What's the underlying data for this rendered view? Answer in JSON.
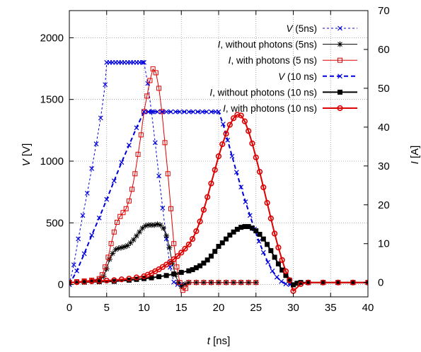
{
  "chart_data": {
    "type": "line",
    "xlabel": {
      "italic": "t",
      "unit": " [ns]"
    },
    "ylabel_left": {
      "italic": "V",
      "unit": " [V]"
    },
    "ylabel_right": {
      "italic": "I",
      "unit": " [A]"
    },
    "xlim": [
      0,
      40
    ],
    "ylim_left": [
      -100,
      2220
    ],
    "ylim_right": [
      -3.7,
      70
    ],
    "x_ticks": [
      0,
      5,
      10,
      15,
      20,
      25,
      30,
      35,
      40
    ],
    "y_ticks_left": [
      0,
      500,
      1000,
      1500,
      2000
    ],
    "y_ticks_right": [
      0,
      10,
      20,
      30,
      40,
      50,
      60,
      70
    ],
    "grid": true,
    "legend_placement": "top-right",
    "legend": [
      {
        "italic": "V",
        "text": " (5ns)"
      },
      {
        "italic": "I",
        "text": ", without photons (5ns)"
      },
      {
        "italic": "I",
        "text": ", with photons (5 ns)"
      },
      {
        "italic": "V",
        "text": " (10 ns)"
      },
      {
        "italic": "I",
        "text": ", without photons (10 ns)"
      },
      {
        "italic": "I",
        "text": ", with photons (10 ns)"
      }
    ],
    "series": [
      {
        "axis": "left",
        "color": "#0000dd",
        "width": 1,
        "dash": "3,3",
        "marker": "x",
        "x": [
          0,
          0.6,
          1.2,
          1.8,
          2.4,
          3.0,
          3.6,
          4.2,
          4.8,
          5.0,
          5.4,
          5.8,
          6.2,
          6.6,
          7.0,
          7.4,
          7.8,
          8.2,
          8.6,
          9.0,
          9.4,
          9.8,
          10.0,
          10.5,
          11.0,
          11.5,
          12.0,
          12.5,
          13.0,
          13.5,
          14.0,
          14.5,
          15.0
        ],
        "y": [
          0,
          160,
          370,
          560,
          740,
          940,
          1140,
          1350,
          1620,
          1800,
          1800,
          1800,
          1800,
          1800,
          1800,
          1800,
          1800,
          1800,
          1800,
          1800,
          1800,
          1800,
          1800,
          1630,
          1400,
          1150,
          880,
          620,
          370,
          140,
          20,
          0,
          0
        ]
      },
      {
        "axis": "right",
        "color": "#000000",
        "width": 1,
        "dash": "",
        "marker": "star",
        "x": [
          0,
          1,
          2,
          3,
          4,
          4.6,
          5.0,
          5.4,
          5.8,
          6.2,
          6.6,
          7.0,
          7.4,
          7.8,
          8.2,
          8.6,
          9.0,
          9.4,
          9.8,
          10.2,
          10.6,
          11.0,
          11.4,
          11.8,
          12.2,
          12.6,
          13.0,
          13.4,
          13.8,
          14.2,
          14.6,
          15.0,
          15.5,
          16,
          17,
          18,
          19,
          20,
          21,
          22,
          23,
          24,
          25
        ],
        "y": [
          0,
          0.1,
          0.2,
          0.4,
          0.8,
          1.5,
          3.5,
          6,
          7.5,
          8.5,
          8.8,
          9.0,
          9.2,
          9.5,
          10.2,
          11,
          12,
          13,
          14,
          14.6,
          14.8,
          14.8,
          14.8,
          15.0,
          14.8,
          14,
          12,
          9,
          5,
          2,
          0,
          -1.0,
          -0.4,
          0,
          0,
          0,
          0,
          0,
          0,
          0,
          0,
          0,
          0
        ]
      },
      {
        "axis": "right",
        "color": "#dd0000",
        "width": 1,
        "dash": "",
        "marker": "square",
        "x": [
          0,
          1,
          2,
          3,
          4,
          4.4,
          4.8,
          5.2,
          5.6,
          6.0,
          6.4,
          6.8,
          7.2,
          7.6,
          8.0,
          8.4,
          8.8,
          9.2,
          9.6,
          10.0,
          10.4,
          10.8,
          11.2,
          11.6,
          12.0,
          12.4,
          12.8,
          13.2,
          13.6,
          14.0,
          14.4,
          14.8,
          15.2,
          15.6,
          16,
          17,
          18,
          19,
          20,
          21,
          22,
          23,
          24,
          25
        ],
        "y": [
          0,
          0.2,
          0.4,
          0.6,
          1.0,
          2.0,
          4,
          6.5,
          10,
          13,
          15.5,
          17,
          18,
          19,
          21,
          24,
          28,
          33,
          38,
          44,
          48,
          52,
          55,
          54,
          50,
          44,
          36,
          28,
          19,
          10,
          4,
          0,
          -2.0,
          -1.5,
          0,
          0,
          0,
          0,
          0,
          0,
          0,
          0,
          0,
          0
        ]
      },
      {
        "axis": "left",
        "color": "#0000dd",
        "width": 2,
        "dash": "6,4",
        "marker": "x",
        "x": [
          0,
          1,
          2,
          3,
          4,
          5,
          6,
          7,
          8,
          9,
          10,
          10.6,
          11.2,
          11.8,
          12.4,
          13,
          13.6,
          14.2,
          14.8,
          15.4,
          16,
          16.6,
          17.2,
          17.8,
          18.4,
          19,
          19.6,
          20,
          20.6,
          21.2,
          21.8,
          22.4,
          23,
          23.6,
          24.2,
          24.8,
          25.4,
          26,
          26.6,
          27.2,
          27.8,
          28.4,
          29,
          29.6,
          30
        ],
        "y": [
          0,
          110,
          250,
          400,
          540,
          690,
          840,
          990,
          1130,
          1270,
          1400,
          1400,
          1400,
          1400,
          1400,
          1400,
          1400,
          1400,
          1400,
          1400,
          1400,
          1400,
          1400,
          1400,
          1400,
          1400,
          1400,
          1400,
          1300,
          1170,
          1040,
          910,
          790,
          670,
          560,
          450,
          350,
          260,
          180,
          110,
          60,
          25,
          5,
          0,
          0
        ]
      },
      {
        "axis": "right",
        "color": "#000000",
        "width": 2,
        "dash": "",
        "marker": "filledsquare",
        "x": [
          0,
          2,
          4,
          6,
          8,
          9,
          10,
          11,
          12,
          13,
          14,
          15,
          16,
          16.5,
          17,
          17.5,
          18,
          18.5,
          19,
          19.5,
          20,
          20.5,
          21,
          21.5,
          22,
          22.5,
          23,
          23.5,
          24,
          24.5,
          25,
          25.5,
          26,
          26.5,
          27,
          27.5,
          28,
          28.5,
          29,
          29.5,
          30,
          30.5,
          31,
          32,
          34,
          36,
          38,
          40
        ],
        "y": [
          0,
          0.1,
          0.2,
          0.3,
          0.6,
          0.8,
          1.0,
          1.2,
          1.5,
          1.8,
          2.2,
          2.6,
          3.0,
          3.3,
          3.8,
          4.3,
          5.0,
          5.8,
          6.8,
          8.0,
          9.3,
          10.2,
          11.2,
          12.2,
          13.0,
          13.7,
          14.2,
          14.4,
          14.4,
          14.0,
          13.3,
          12.4,
          11.2,
          9.8,
          8.2,
          6.5,
          4.8,
          3.2,
          1.8,
          0.6,
          -0.6,
          -0.2,
          0,
          0,
          0,
          0,
          0,
          0
        ]
      },
      {
        "axis": "right",
        "color": "#dd0000",
        "width": 2,
        "dash": "",
        "marker": "circle",
        "x": [
          0,
          1,
          2,
          3,
          4,
          5,
          6,
          7,
          8,
          9,
          10,
          10.5,
          11,
          11.5,
          12,
          12.5,
          13,
          13.5,
          14,
          14.5,
          15,
          15.5,
          16,
          16.5,
          17,
          17.5,
          18,
          18.5,
          19,
          19.5,
          20,
          20.5,
          21,
          21.5,
          22,
          22.5,
          23,
          23.5,
          24,
          24.5,
          25,
          25.5,
          26,
          26.5,
          27,
          27.5,
          28,
          28.5,
          29,
          29.5,
          30,
          31,
          32,
          34,
          36,
          38,
          40
        ],
        "y": [
          0,
          0.1,
          0.2,
          0.3,
          0.4,
          0.5,
          0.6,
          0.8,
          1.0,
          1.3,
          1.6,
          2.0,
          2.4,
          2.9,
          3.4,
          4.0,
          4.6,
          5.3,
          6.0,
          6.8,
          7.7,
          8.7,
          9.8,
          11.2,
          13.2,
          15.7,
          18.7,
          22.0,
          25.5,
          29.0,
          32.5,
          35.6,
          38.3,
          40.6,
          42.3,
          43.2,
          43.0,
          41.5,
          39.0,
          35.8,
          32.2,
          28.5,
          24.5,
          20.5,
          16.5,
          12.6,
          9.0,
          5.8,
          2.9,
          0.6,
          -2.2,
          -0.4,
          0,
          0,
          0,
          0,
          0
        ]
      }
    ]
  }
}
